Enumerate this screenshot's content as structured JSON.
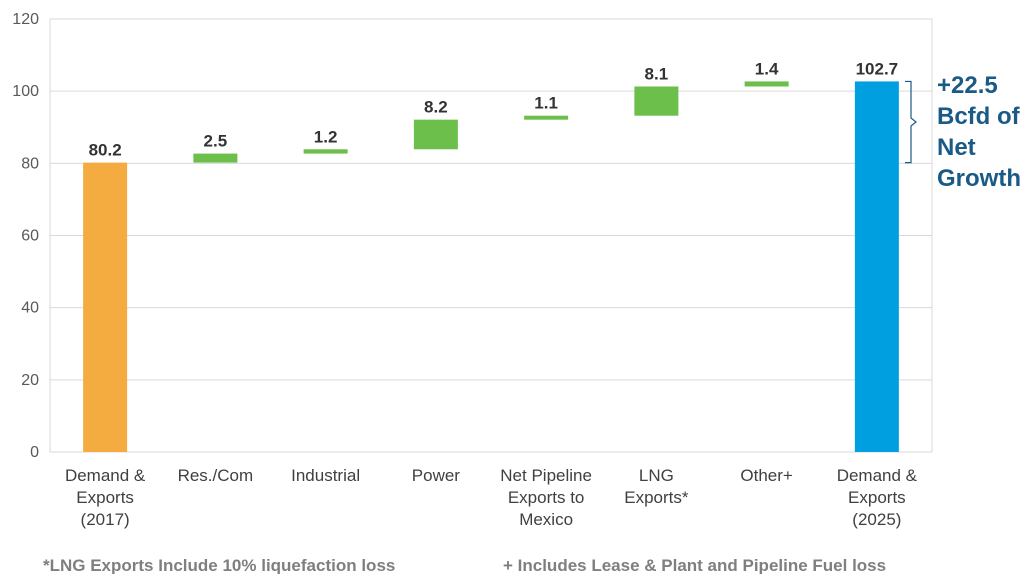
{
  "chart_data": {
    "type": "waterfall",
    "title": "",
    "xlabel": "",
    "ylabel": "",
    "ylim": [
      0,
      120
    ],
    "yticks": [
      0,
      20,
      40,
      60,
      80,
      100,
      120
    ],
    "grid": true,
    "categories": [
      [
        "Demand &",
        "Exports",
        "(2017)"
      ],
      [
        "Res./Com"
      ],
      [
        "Industrial"
      ],
      [
        "Power"
      ],
      [
        "Net Pipeline",
        "Exports to",
        "Mexico"
      ],
      [
        "LNG",
        "Exports*"
      ],
      [
        "Other+"
      ],
      [
        "Demand &",
        "Exports",
        "(2025)"
      ]
    ],
    "values": [
      80.2,
      2.5,
      1.2,
      8.2,
      1.1,
      8.1,
      1.4,
      102.7
    ],
    "bases": [
      0,
      80.2,
      82.7,
      83.9,
      92.1,
      93.2,
      101.3,
      0
    ],
    "labels": [
      "80.2",
      "2.5",
      "1.2",
      "8.2",
      "1.1",
      "8.1",
      "1.4",
      "102.7"
    ],
    "kinds": [
      "total",
      "delta",
      "delta",
      "delta",
      "delta",
      "delta",
      "delta",
      "total"
    ],
    "colors": {
      "start_total": "#f4ac41",
      "increase": "#6cbf4b",
      "end_total": "#00a0e0",
      "grid": "#d9d9d9",
      "bracket": "#1a5a86"
    },
    "annotation": {
      "lines": [
        "+22.5",
        "Bcfd of",
        "Net",
        "Growth"
      ],
      "from": 80.2,
      "to": 102.7
    },
    "footnotes": [
      "*LNG Exports Include 10% liquefaction loss",
      "+ Includes Lease & Plant and Pipeline Fuel loss"
    ]
  }
}
